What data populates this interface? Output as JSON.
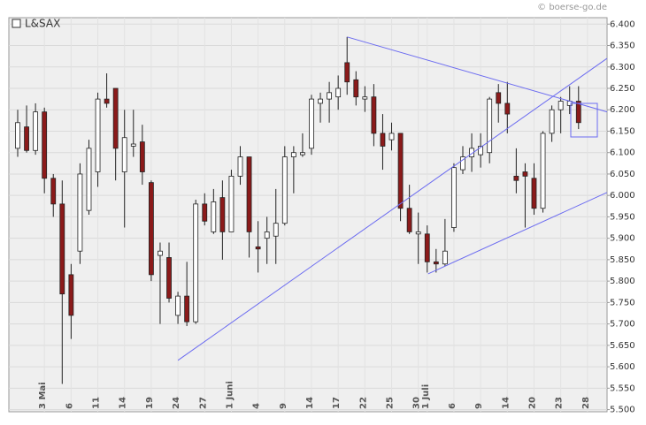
{
  "chart_data": {
    "type": "candlestick",
    "name": "L&SAX",
    "source": "© boerse-go.de",
    "categories": [
      null,
      null,
      null,
      "3 Mai",
      null,
      null,
      "6",
      null,
      null,
      "11",
      null,
      null,
      "14",
      null,
      null,
      "19",
      null,
      null,
      "24",
      null,
      null,
      "27",
      null,
      null,
      "1 Juni",
      null,
      null,
      "4",
      null,
      null,
      "9",
      null,
      null,
      "14",
      null,
      null,
      "17",
      null,
      null,
      "22",
      null,
      null,
      "25",
      null,
      null,
      "30",
      "1 Juli",
      null,
      null,
      "6",
      null,
      null,
      "9",
      null,
      null,
      "14",
      null,
      null,
      "20",
      null,
      null,
      "23",
      null,
      null,
      "28"
    ],
    "open": [
      6110,
      6160,
      6105,
      6195,
      6040,
      5980,
      5815,
      5870,
      5965,
      6055,
      6225,
      6250,
      6055,
      6115,
      6125,
      6030,
      5860,
      5855,
      5720,
      5765,
      5705,
      5980,
      5915,
      5995,
      5915,
      6045,
      6090,
      5880,
      5900,
      5905,
      5935,
      6090,
      6095,
      6110,
      6215,
      6225,
      6230,
      6310,
      6270,
      6225,
      6230,
      6145,
      6130,
      6145,
      5970,
      5910,
      5910,
      5845,
      5840,
      5925,
      6060,
      6090,
      6095,
      6100,
      6240,
      6215,
      6045,
      6055,
      6040,
      5970,
      6145,
      6200,
      6210,
      6220,
      null
    ],
    "high": [
      6200,
      6210,
      6215,
      6205,
      6050,
      6035,
      5840,
      6075,
      6130,
      6240,
      6285,
      6250,
      6200,
      6200,
      6165,
      6035,
      5890,
      5890,
      5775,
      5845,
      5990,
      6005,
      6015,
      6035,
      6060,
      6115,
      6090,
      5940,
      5950,
      6015,
      6115,
      6115,
      6145,
      6235,
      6240,
      6265,
      6280,
      6370,
      6290,
      6255,
      6260,
      6190,
      6170,
      6145,
      6025,
      5960,
      5930,
      5875,
      5945,
      6075,
      6115,
      6145,
      6145,
      6230,
      6260,
      6265,
      6110,
      6075,
      6075,
      6150,
      6210,
      6230,
      6255,
      6255,
      null
    ],
    "low": [
      6090,
      6100,
      6095,
      6005,
      5950,
      5560,
      5665,
      5840,
      5955,
      6020,
      6205,
      6035,
      5925,
      6090,
      6025,
      5800,
      5700,
      5750,
      5700,
      5695,
      5700,
      5930,
      5910,
      5850,
      5915,
      6025,
      5855,
      5820,
      5840,
      5840,
      5930,
      6005,
      6090,
      6095,
      6170,
      6170,
      6200,
      6235,
      6210,
      6195,
      6115,
      6060,
      6105,
      5940,
      5910,
      5840,
      5820,
      5820,
      5835,
      5915,
      6050,
      6055,
      6065,
      6075,
      6170,
      6145,
      6005,
      5925,
      5955,
      5960,
      6125,
      6145,
      6190,
      6155,
      null
    ],
    "close": [
      6170,
      6105,
      6195,
      6040,
      5980,
      5770,
      5720,
      6050,
      6110,
      6225,
      6215,
      6110,
      6135,
      6120,
      6055,
      5815,
      5870,
      5760,
      5765,
      5705,
      5980,
      5940,
      5985,
      5915,
      6045,
      6090,
      5915,
      5875,
      5915,
      5935,
      6090,
      6100,
      6100,
      6225,
      6225,
      6240,
      6250,
      6265,
      6230,
      6230,
      6145,
      6115,
      6145,
      5970,
      5915,
      5915,
      5845,
      5840,
      5870,
      6065,
      6090,
      6110,
      6115,
      6225,
      6215,
      6190,
      6035,
      6045,
      5970,
      6145,
      6200,
      6220,
      6220,
      6170,
      null
    ],
    "up_color": "#ffffff",
    "down_color": "#8b1a1a",
    "trendline_color": "#6b6bf0",
    "trendlines": [
      {
        "x": [
          18,
          66.2
        ],
        "y": [
          5615,
          6320
        ]
      },
      {
        "x": [
          37,
          66.2
        ],
        "y": [
          6370,
          6195
        ]
      },
      {
        "x": [
          46.1,
          66.2
        ],
        "y": [
          5817,
          6007
        ]
      }
    ],
    "ylim": [
      5495,
      6415
    ],
    "yticks": [
      {
        "value": 5500,
        "label": "5.500"
      },
      {
        "value": 5550,
        "label": "5.550"
      },
      {
        "value": 5600,
        "label": "5.600"
      },
      {
        "value": 5650,
        "label": "5.650"
      },
      {
        "value": 5700,
        "label": "5.700"
      },
      {
        "value": 5750,
        "label": "5.750"
      },
      {
        "value": 5800,
        "label": "5.800"
      },
      {
        "value": 5850,
        "label": "5.850"
      },
      {
        "value": 5900,
        "label": "5.900"
      },
      {
        "value": 5950,
        "label": "5.950"
      },
      {
        "value": 6000,
        "label": "6.000"
      },
      {
        "value": 6050,
        "label": "6.050"
      },
      {
        "value": 6100,
        "label": "6.100"
      },
      {
        "value": 6150,
        "label": "6.150"
      },
      {
        "value": 6200,
        "label": "6.200"
      },
      {
        "value": 6250,
        "label": "6.250"
      },
      {
        "value": 6300,
        "label": "6.300"
      },
      {
        "value": 6350,
        "label": "6.350"
      },
      {
        "value": 6400,
        "label": "6.400"
      }
    ],
    "grid": true
  }
}
